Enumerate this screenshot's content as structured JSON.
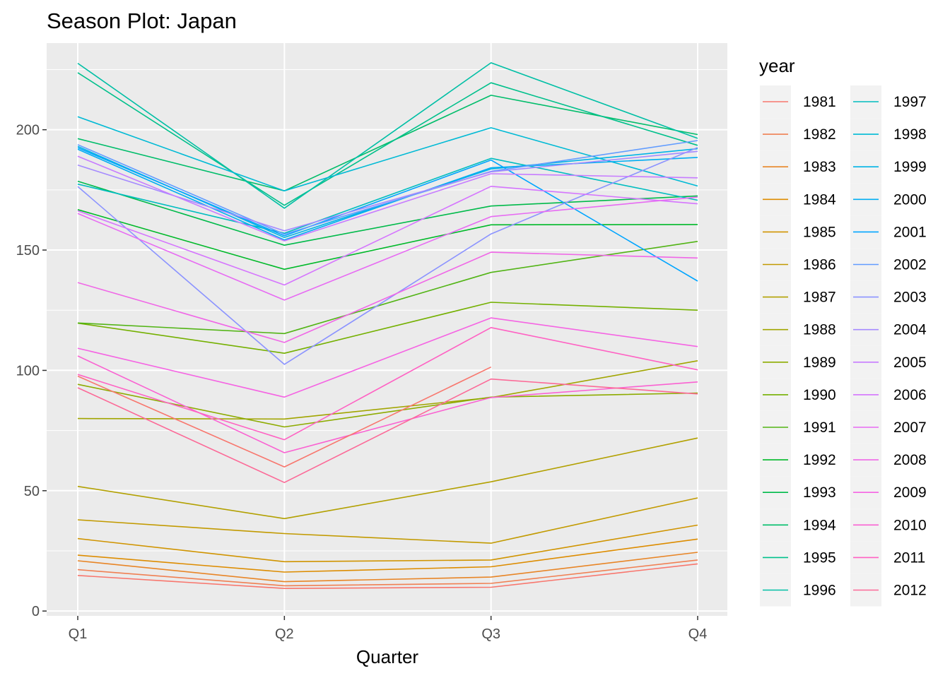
{
  "chart_data": {
    "type": "line",
    "title": "Season Plot: Japan",
    "xlabel": "Quarter",
    "ylabel": "",
    "categories": [
      "Q1",
      "Q2",
      "Q3",
      "Q4"
    ],
    "ylim": [
      -2,
      236
    ],
    "yticks": [
      0,
      50,
      100,
      150,
      200
    ],
    "ytick_labels": [
      "0",
      "50",
      "100",
      "150",
      "200"
    ],
    "grid": true,
    "background": "#ebebeb",
    "legend": {
      "title": "year",
      "position": "right",
      "columns": 2
    },
    "series": [
      {
        "name": "1981",
        "color": "#F8766D",
        "values": [
          14.8,
          9.4,
          9.9,
          19.6
        ]
      },
      {
        "name": "1982",
        "color": "#F07F52",
        "values": [
          17.2,
          10.5,
          11.5,
          21.2
        ]
      },
      {
        "name": "1983",
        "color": "#E88526",
        "values": [
          20.9,
          12.2,
          14.1,
          24.4
        ]
      },
      {
        "name": "1984",
        "color": "#DD8C00",
        "values": [
          23.2,
          16.2,
          18.4,
          29.9
        ]
      },
      {
        "name": "1985",
        "color": "#D09400",
        "values": [
          30.1,
          20.5,
          21.2,
          35.7
        ]
      },
      {
        "name": "1986",
        "color": "#C29A00",
        "values": [
          37.9,
          32.2,
          28.2,
          47.0
        ]
      },
      {
        "name": "1987",
        "color": "#B2A000",
        "values": [
          51.8,
          38.4,
          53.7,
          71.9
        ]
      },
      {
        "name": "1988",
        "color": "#A1A500",
        "values": [
          80.0,
          79.8,
          88.7,
          104.0
        ]
      },
      {
        "name": "1989",
        "color": "#8DAB00",
        "values": [
          94.2,
          76.5,
          88.9,
          90.6
        ]
      },
      {
        "name": "1990",
        "color": "#74B000",
        "values": [
          119.6,
          107.1,
          128.3,
          125.0
        ]
      },
      {
        "name": "1991",
        "color": "#52B415",
        "values": [
          119.7,
          115.3,
          140.7,
          153.6
        ]
      },
      {
        "name": "1992",
        "color": "#00B929",
        "values": [
          166.8,
          142.0,
          160.5,
          160.6
        ]
      },
      {
        "name": "1993",
        "color": "#00BA4A",
        "values": [
          178.6,
          152.0,
          168.3,
          172.5
        ]
      },
      {
        "name": "1994",
        "color": "#00BD6A",
        "values": [
          196.3,
          174.6,
          214.3,
          198.0
        ]
      },
      {
        "name": "1995",
        "color": "#00C08B",
        "values": [
          223.7,
          168.6,
          219.5,
          193.5
        ]
      },
      {
        "name": "1996",
        "color": "#00BFA5",
        "values": [
          227.6,
          167.4,
          227.8,
          196.4
        ]
      },
      {
        "name": "1997",
        "color": "#00BDC0",
        "values": [
          177.4,
          157.0,
          188.1,
          170.7
        ]
      },
      {
        "name": "1998",
        "color": "#00BAD5",
        "values": [
          205.4,
          174.6,
          200.8,
          176.6
        ]
      },
      {
        "name": "1999",
        "color": "#00B4E6",
        "values": [
          193.1,
          155.2,
          183.7,
          192.1
        ]
      },
      {
        "name": "2000",
        "color": "#00ADF2",
        "values": [
          191.9,
          154.2,
          184.2,
          188.5
        ]
      },
      {
        "name": "2001",
        "color": "#00A5FF",
        "values": [
          192.5,
          155.9,
          187.4,
          137.1
        ]
      },
      {
        "name": "2002",
        "color": "#619CFF",
        "values": [
          193.8,
          156.6,
          182.7,
          195.5
        ]
      },
      {
        "name": "2003",
        "color": "#8B93FF",
        "values": [
          176.4,
          102.5,
          156.7,
          192.6
        ]
      },
      {
        "name": "2004",
        "color": "#A58AFF",
        "values": [
          185.3,
          158.0,
          182.5,
          191.0
        ]
      },
      {
        "name": "2005",
        "color": "#C77CFF",
        "values": [
          189.0,
          153.8,
          181.7,
          180.0
        ]
      },
      {
        "name": "2006",
        "color": "#D575FE",
        "values": [
          166.3,
          135.5,
          176.5,
          169.2
        ]
      },
      {
        "name": "2007",
        "color": "#E76BF3",
        "values": [
          165.2,
          129.2,
          163.9,
          172.0
        ]
      },
      {
        "name": "2008",
        "color": "#F067E7",
        "values": [
          136.5,
          111.6,
          149.1,
          146.7
        ]
      },
      {
        "name": "2009",
        "color": "#F564E3",
        "values": [
          109.2,
          88.9,
          121.8,
          109.9
        ]
      },
      {
        "name": "2010",
        "color": "#FA62D2",
        "values": [
          106.0,
          65.8,
          88.7,
          95.2
        ]
      },
      {
        "name": "2011",
        "color": "#FF61C3",
        "values": [
          98.3,
          71.2,
          117.8,
          100.2
        ]
      },
      {
        "name": "2012",
        "color": "#FC6997",
        "values": [
          92.8,
          53.4,
          96.4,
          90.2
        ]
      },
      {
        "name": "",
        "color": "#F8766D",
        "values": [
          97.6,
          59.9,
          101.4,
          null
        ],
        "legend": false
      }
    ]
  }
}
